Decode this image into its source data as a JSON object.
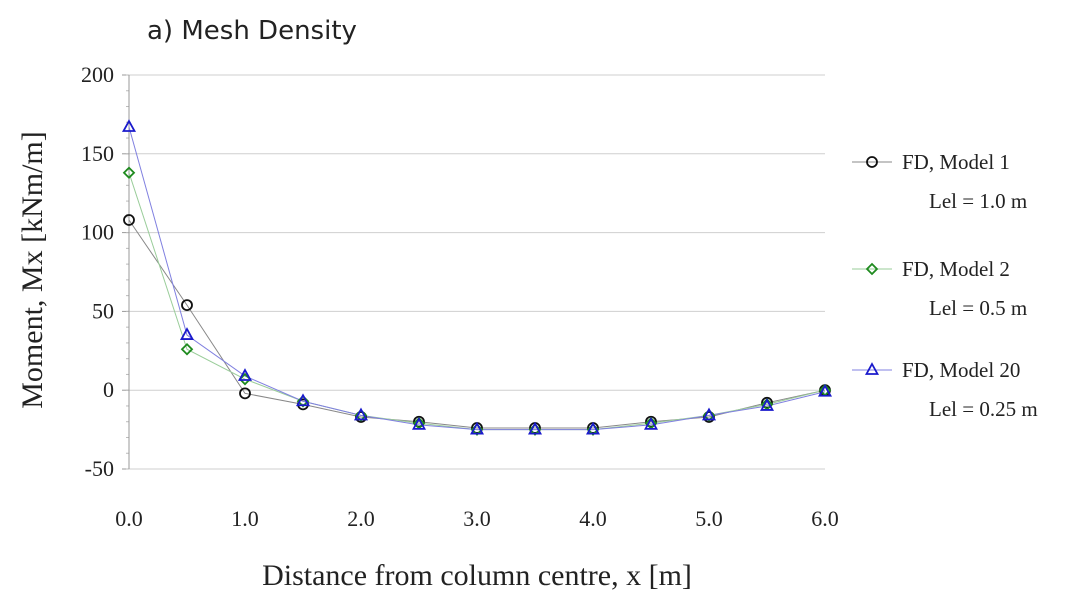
{
  "chart_data": {
    "type": "line",
    "title": "a)   Mesh Density",
    "xlabel": "Distance from column centre, x [m]",
    "ylabel": "Moment, Mx [kNm/m]",
    "xlim": [
      0,
      6
    ],
    "ylim": [
      -50,
      200
    ],
    "x_ticks": [
      "0.0",
      "1.0",
      "2.0",
      "3.0",
      "4.0",
      "5.0",
      "6.0"
    ],
    "y_ticks": [
      "200",
      "150",
      "100",
      "50",
      "0",
      "-50"
    ],
    "grid": "horizontal",
    "legend_position": "right",
    "series": [
      {
        "name": "FD, Model 1",
        "sublabel": "Lel = 1.0 m",
        "marker": "circle",
        "color": "#111111",
        "line_color": "#888888",
        "x": [
          0,
          0.5,
          1.0,
          1.5,
          2.0,
          2.5,
          3.0,
          3.5,
          4.0,
          4.5,
          5.0,
          5.5,
          6.0
        ],
        "y": [
          108,
          54,
          -2,
          -9,
          -17,
          -20,
          -24,
          -24,
          -24,
          -20,
          -17,
          -8,
          0
        ]
      },
      {
        "name": "FD, Model 2",
        "sublabel": "Lel = 0.5 m",
        "marker": "diamond",
        "color": "#1e8a1e",
        "line_color": "#9acd9a",
        "x": [
          0,
          0.5,
          1.0,
          1.5,
          2.0,
          2.5,
          3.0,
          3.5,
          4.0,
          4.5,
          5.0,
          5.5,
          6.0
        ],
        "y": [
          138,
          26,
          7,
          -7,
          -16,
          -21,
          -25,
          -25,
          -25,
          -21,
          -16,
          -9,
          0
        ]
      },
      {
        "name": "FD, Model 20",
        "sublabel": "Lel = 0.25 m",
        "marker": "triangle",
        "color": "#1a1acc",
        "line_color": "#8080e0",
        "x": [
          0,
          0.5,
          1.0,
          1.5,
          2.0,
          2.5,
          3.0,
          3.5,
          4.0,
          4.5,
          5.0,
          5.5,
          6.0
        ],
        "y": [
          167,
          35,
          9,
          -7,
          -16,
          -22,
          -25,
          -25,
          -25,
          -22,
          -16,
          -10,
          -1
        ]
      }
    ]
  }
}
